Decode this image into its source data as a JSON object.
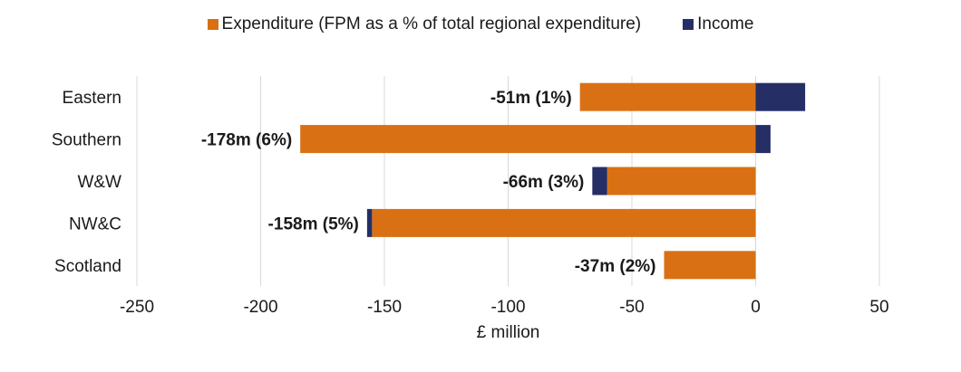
{
  "legend": {
    "expenditure_label": "Expenditure (FPM as a % of total regional expenditure)",
    "income_label": "Income"
  },
  "colors": {
    "expenditure": "#d97114",
    "income": "#252f66",
    "grid": "#d9d9d9",
    "text": "#1a1a1a"
  },
  "chart_data": {
    "type": "bar",
    "orientation": "horizontal",
    "stacked": true,
    "categories": [
      "Eastern",
      "Southern",
      "W&W",
      "NW&C",
      "Scotland"
    ],
    "series": [
      {
        "name": "Expenditure (FPM as a % of total regional expenditure)",
        "values": [
          -71,
          -184,
          -60,
          -155,
          -37
        ]
      },
      {
        "name": "Income",
        "values": [
          20,
          6,
          -6,
          -2,
          0
        ]
      }
    ],
    "data_labels": [
      "-51m (1%)",
      "-178m (6%)",
      "-66m (3%)",
      "-158m (5%)",
      "-37m (2%)"
    ],
    "xlabel": "£ million",
    "ylabel": "",
    "xlim": [
      -250,
      50
    ],
    "xticks": [
      -250,
      -200,
      -150,
      -100,
      -50,
      0,
      50
    ],
    "grid": true,
    "legend_position": "top"
  }
}
